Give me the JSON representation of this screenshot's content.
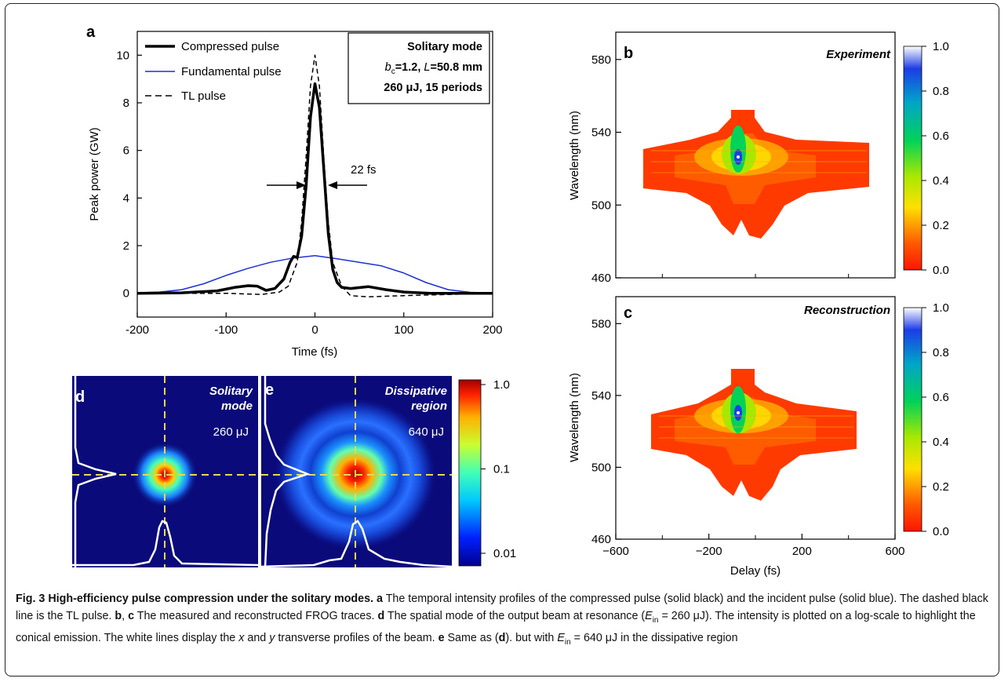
{
  "caption": {
    "fig_label": "Fig. 3",
    "title": "High-efficiency pulse compression under the solitary modes.",
    "parts": [
      {
        "t": "b",
        "v": "a"
      },
      {
        "t": "n",
        "v": " The temporal intensity profiles of the compressed pulse (solid black) and the incident pulse (solid blue). The dashed black line is the TL pulse. "
      },
      {
        "t": "b",
        "v": "b"
      },
      {
        "t": "n",
        "v": ", "
      },
      {
        "t": "b",
        "v": "c"
      },
      {
        "t": "n",
        "v": " The measured and reconstructed FROG traces. "
      },
      {
        "t": "b",
        "v": "d"
      },
      {
        "t": "n",
        "v": " The spatial mode of the output beam at resonance ("
      },
      {
        "t": "i",
        "v": "E"
      },
      {
        "t": "sub",
        "v": "in"
      },
      {
        "t": "n",
        "v": " = 260 μJ). The intensity is plotted on a log-scale to highlight the conical emission. The white lines display the "
      },
      {
        "t": "i",
        "v": "x"
      },
      {
        "t": "n",
        "v": " and "
      },
      {
        "t": "i",
        "v": "y"
      },
      {
        "t": "n",
        "v": " transverse profiles of the beam. "
      },
      {
        "t": "b",
        "v": "e"
      },
      {
        "t": "n",
        "v": " Same as ("
      },
      {
        "t": "b",
        "v": "d"
      },
      {
        "t": "n",
        "v": "). but with "
      },
      {
        "t": "i",
        "v": "E"
      },
      {
        "t": "sub",
        "v": "in"
      },
      {
        "t": "n",
        "v": " = 640 μJ in the dissipative region"
      }
    ]
  },
  "panel_a": {
    "label": "a",
    "xlabel": "Time (fs)",
    "ylabel": "Peak power (GW)",
    "info_box": {
      "line1": "Solitary mode",
      "line2_b": "b",
      "line2_sub": "c",
      "line2_rest": "=1.2, ",
      "line2_L": "L",
      "line2_end": "=50.8 mm",
      "line3": "260 μJ, 15 periods"
    },
    "annotation": "22 fs",
    "legend": [
      "Compressed pulse",
      "Fundamental pulse",
      "TL pulse"
    ]
  },
  "panel_b": {
    "label": "b",
    "title": "Experiment",
    "ylabel": "Wavelength (nm)",
    "colorbar_ticks": [
      "1.0",
      "0.8",
      "0.6",
      "0.4",
      "0.2",
      "0.0"
    ]
  },
  "panel_c": {
    "label": "c",
    "title": "Reconstruction",
    "ylabel": "Wavelength (nm)",
    "xlabel": "Delay (fs)",
    "colorbar_ticks": [
      "1.0",
      "0.8",
      "0.6",
      "0.4",
      "0.2",
      "0.0"
    ]
  },
  "panel_d": {
    "label": "d",
    "title_line1": "Solitary",
    "title_line2": "mode",
    "energy": "260 μJ"
  },
  "panel_e": {
    "label": "e",
    "title_line1": "Dissipative",
    "title_line2": "region",
    "energy": "640 μJ"
  },
  "log_colorbar_ticks": [
    "1.0",
    "0.1",
    "0.01"
  ],
  "colors": {
    "fundamental": "#1f2fd6",
    "compressed": "#000000",
    "crosshair": "#e8d94a",
    "beam_bg": "#0a0a7a"
  },
  "chart_data": [
    {
      "type": "line",
      "title": "",
      "xlabel": "Time (fs)",
      "ylabel": "Peak power (GW)",
      "xlim": [
        -200,
        200
      ],
      "ylim": [
        -1,
        11
      ],
      "xticks": [
        -200,
        -100,
        0,
        100,
        200
      ],
      "yticks": [
        0,
        2,
        4,
        6,
        8,
        10
      ],
      "legend_position": "top-left",
      "series": [
        {
          "name": "Compressed pulse",
          "style": "solid-thick",
          "color": "#000000",
          "x": [
            -200,
            -150,
            -110,
            -90,
            -75,
            -65,
            -55,
            -45,
            -35,
            -28,
            -24,
            -20,
            -15,
            -10,
            -5,
            0,
            5,
            10,
            15,
            20,
            25,
            30,
            40,
            60,
            80,
            100,
            130,
            200
          ],
          "y": [
            0,
            0.02,
            0.1,
            0.25,
            0.32,
            0.3,
            0.12,
            0.2,
            0.6,
            1.3,
            1.55,
            1.5,
            2.4,
            4.5,
            7.4,
            8.8,
            7.8,
            5.2,
            2.5,
            1.0,
            0.45,
            0.25,
            0.2,
            0.28,
            0.15,
            0.05,
            0.0,
            0
          ]
        },
        {
          "name": "Fundamental pulse",
          "style": "solid",
          "color": "#1f2fd6",
          "x": [
            -200,
            -175,
            -150,
            -125,
            -100,
            -75,
            -50,
            -25,
            0,
            25,
            50,
            75,
            100,
            125,
            150,
            175,
            200
          ],
          "y": [
            0.02,
            0.05,
            0.15,
            0.4,
            0.75,
            1.05,
            1.3,
            1.48,
            1.58,
            1.45,
            1.3,
            1.15,
            0.85,
            0.45,
            0.15,
            0.04,
            0.01
          ]
        },
        {
          "name": "TL pulse",
          "style": "dashed",
          "color": "#000000",
          "x": [
            -200,
            -100,
            -60,
            -40,
            -30,
            -20,
            -15,
            -10,
            -5,
            0,
            5,
            10,
            15,
            20,
            30,
            40,
            60,
            100,
            200
          ],
          "y": [
            0,
            0,
            -0.05,
            0.05,
            0.3,
            1.3,
            3.0,
            5.7,
            8.7,
            10.0,
            8.7,
            5.7,
            3.0,
            1.3,
            0.3,
            -0.1,
            -0.15,
            -0.1,
            0
          ]
        }
      ]
    },
    {
      "type": "heatmap",
      "title": "Experiment",
      "ylabel": "Wavelength (nm)",
      "xlim": [
        -600,
        600
      ],
      "ylim": [
        460,
        595
      ],
      "yticks": [
        460,
        500,
        540,
        580
      ],
      "colorbar": {
        "min": 0.0,
        "max": 1.0,
        "ticks": [
          0.0,
          0.2,
          0.4,
          0.6,
          0.8,
          1.0
        ]
      }
    },
    {
      "type": "heatmap",
      "title": "Reconstruction",
      "xlabel": "Delay (fs)",
      "ylabel": "Wavelength (nm)",
      "xlim": [
        -600,
        600
      ],
      "ylim": [
        460,
        595
      ],
      "xticks": [
        -600,
        -200,
        200,
        600
      ],
      "yticks": [
        460,
        500,
        540,
        580
      ],
      "colorbar": {
        "min": 0.0,
        "max": 1.0,
        "ticks": [
          0.0,
          0.2,
          0.4,
          0.6,
          0.8,
          1.0
        ]
      }
    }
  ]
}
